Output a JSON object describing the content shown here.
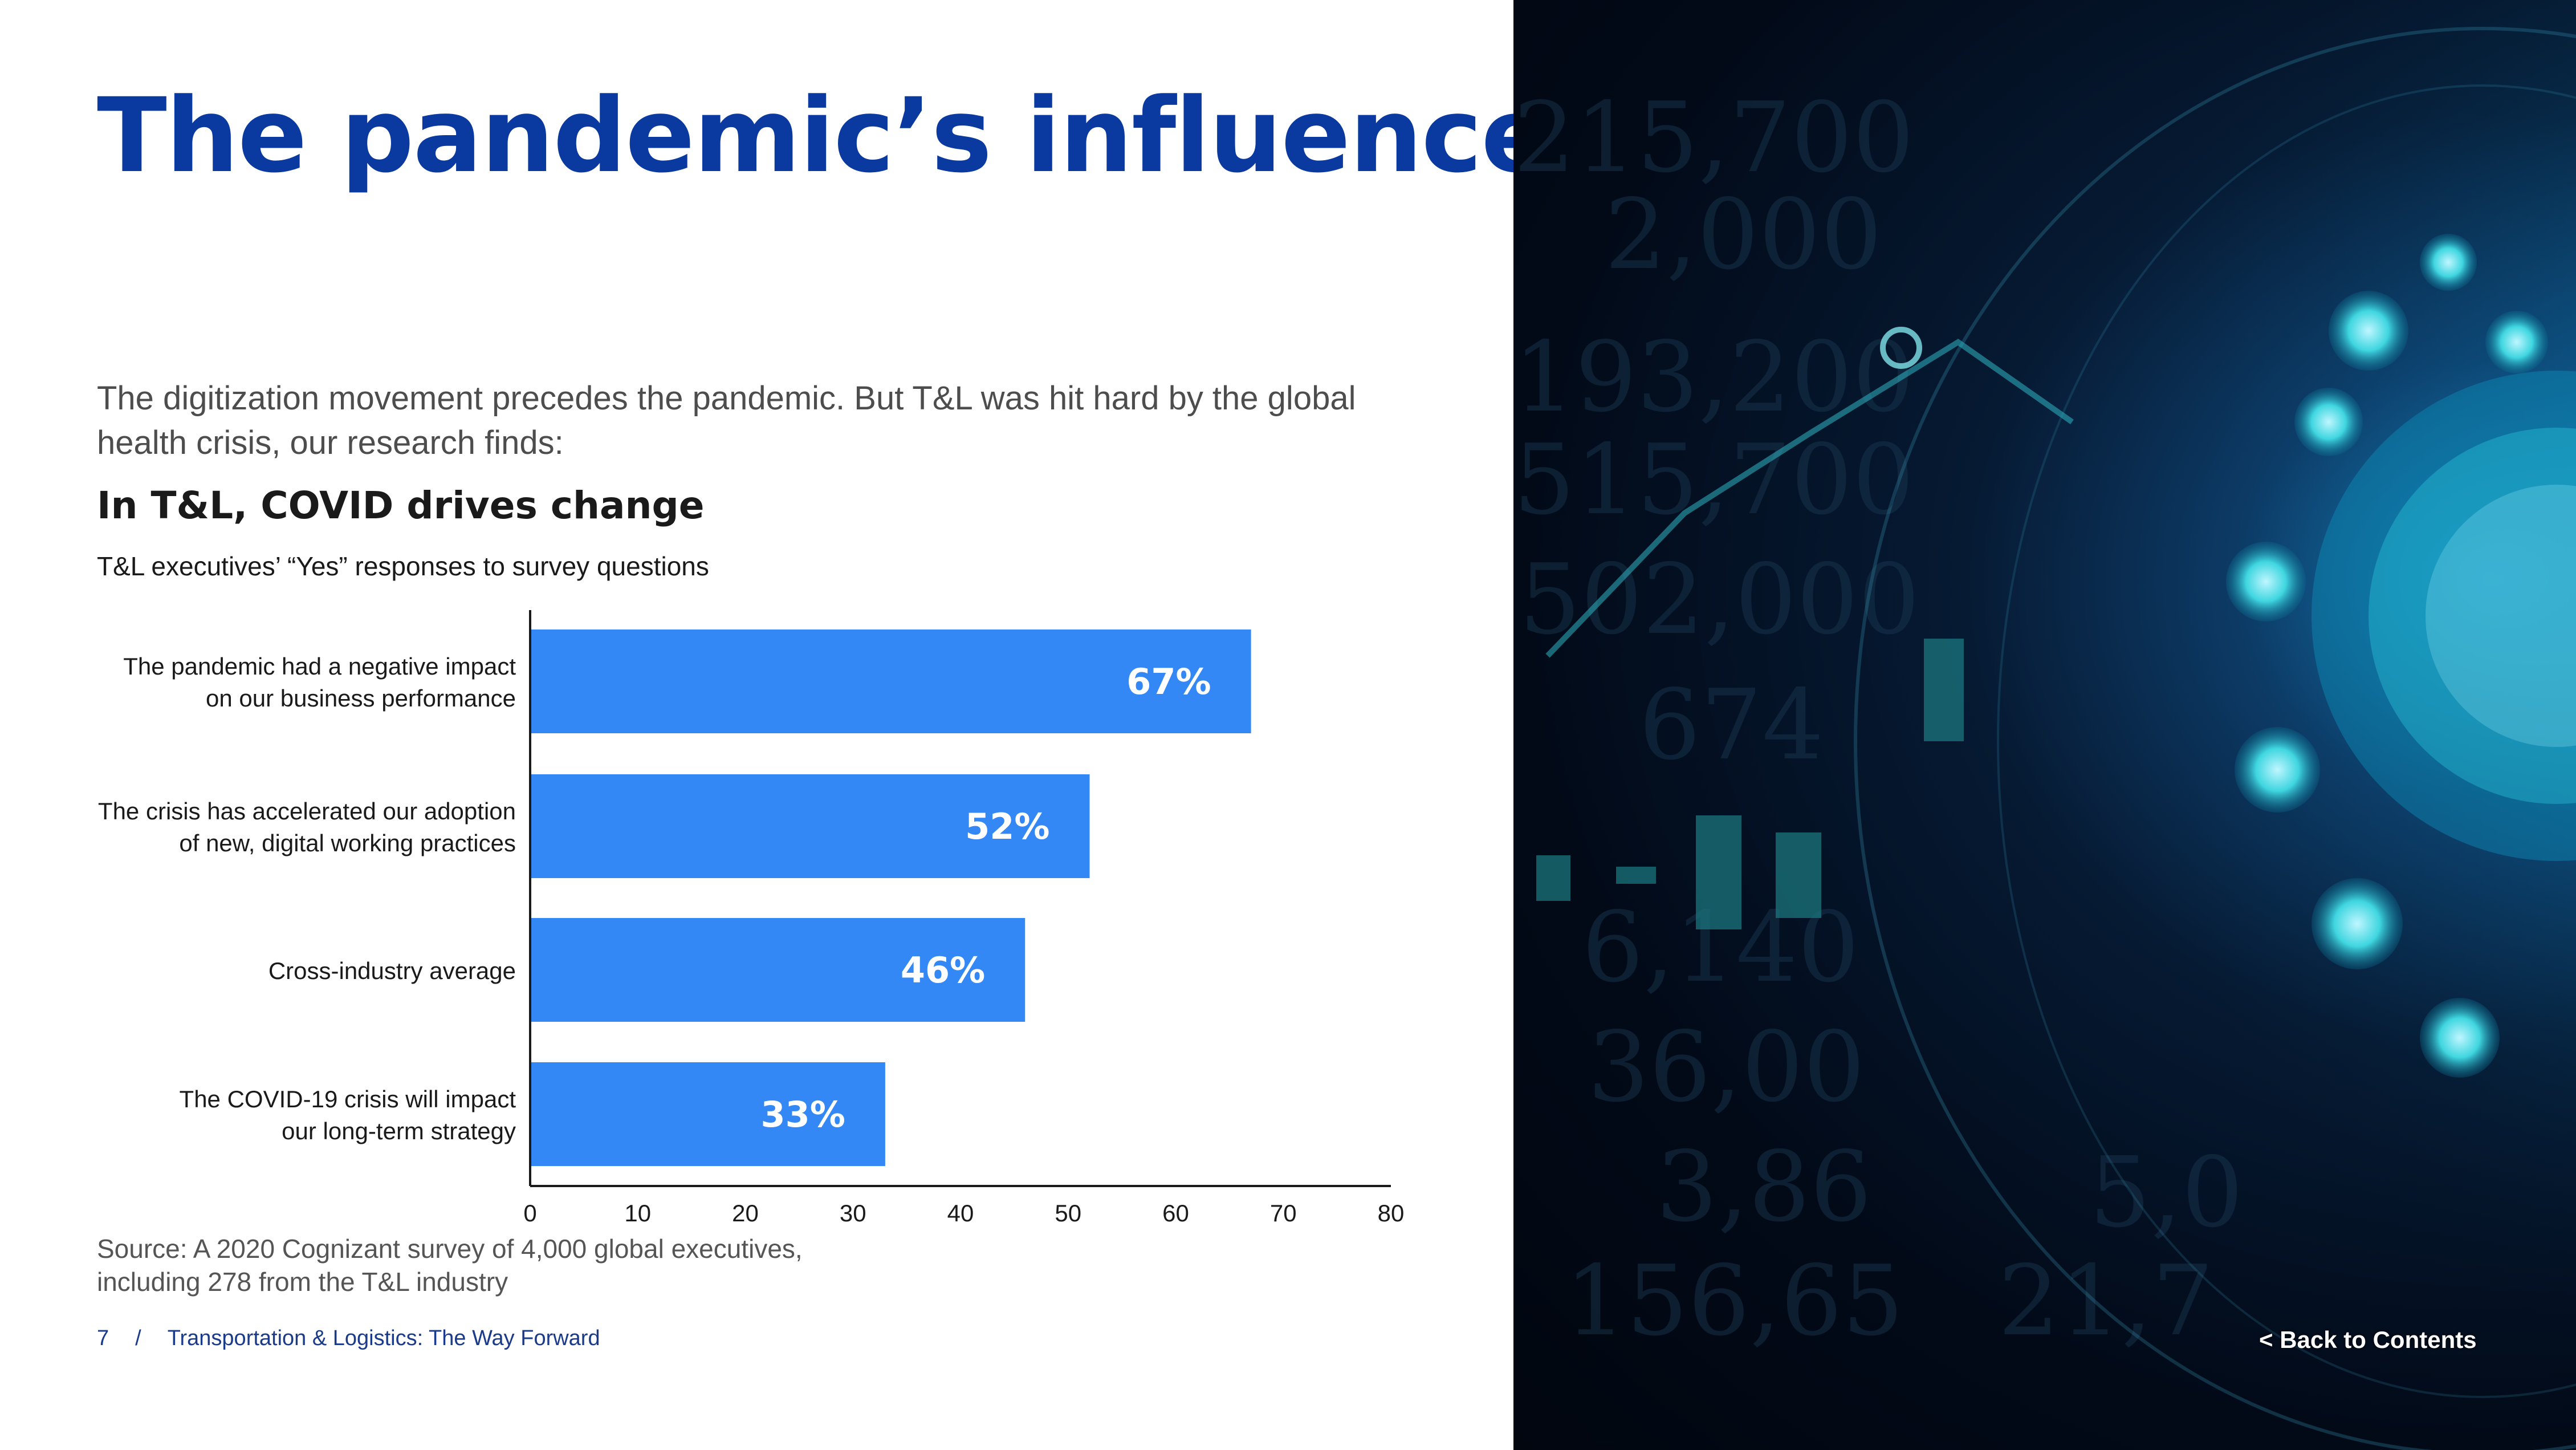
{
  "page": {
    "title": "The pandemic’s influence",
    "intro": "The digitization movement precedes the pandemic. But T&L was hit hard by the global health crisis, our research finds:",
    "subtitle": "In T&L, COVID drives change",
    "survey_label": "T&L executives’ “Yes” responses to survey questions",
    "source": "Source: A 2020 Cognizant survey of 4,000 global executives, including 278 from the T&L industry",
    "footer": {
      "page_number": "7",
      "separator": "/",
      "doc_title": "Transportation & Logistics: The Way Forward"
    },
    "back_link": "<  Back to Contents"
  },
  "chart_data": {
    "type": "bar",
    "orientation": "horizontal",
    "categories": [
      [
        "The pandemic had a negative impact",
        "on our business performance"
      ],
      [
        "The crisis has accelerated our adoption",
        "of new, digital working practices"
      ],
      [
        "Cross-industry average"
      ],
      [
        "The COVID-19 crisis will impact",
        "our long-term strategy"
      ]
    ],
    "values": [
      67,
      52,
      46,
      33
    ],
    "data_labels": [
      "67%",
      "52%",
      "46%",
      "33%"
    ],
    "xlim": [
      0,
      80
    ],
    "xticks": [
      0,
      10,
      20,
      30,
      40,
      50,
      60,
      70,
      80
    ],
    "bar_color": "#3388f5",
    "grid": false
  },
  "colors": {
    "title": "#0a3aa0",
    "bar": "#3388f5",
    "panel": "#020a18",
    "accent_glow": "#3fd6e0"
  },
  "decor": {
    "bg_numbers": [
      "215,700",
      "2,000",
      "193,200",
      "515,700",
      "502,000",
      "674",
      "6,140",
      "36,00",
      "3,86",
      "156,65",
      "21,7",
      "5,0"
    ]
  }
}
